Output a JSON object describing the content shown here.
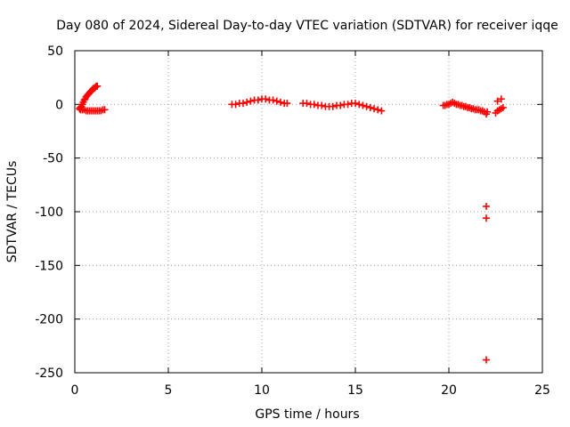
{
  "chart_data": {
    "type": "scatter",
    "title": "Day 080 of 2024, Sidereal Day-to-day VTEC variation (SDTVAR) for receiver iqqe",
    "xlabel": "GPS time / hours",
    "ylabel": "SDTVAR / TECUs",
    "xlim": [
      0,
      25
    ],
    "ylim": [
      -250,
      50
    ],
    "xticks": [
      0,
      5,
      10,
      15,
      20,
      25
    ],
    "yticks": [
      50,
      0,
      -50,
      -100,
      -150,
      -200,
      -250
    ],
    "grid": true,
    "color": "#ff0000",
    "marker": "plus",
    "series": [
      {
        "x": [
          0.25,
          0.3,
          0.35,
          0.4,
          0.45,
          0.5,
          0.55,
          0.6,
          0.65,
          0.7,
          0.75,
          0.8,
          0.85,
          0.9,
          0.95,
          1.0,
          1.05,
          1.1,
          1.15,
          1.2,
          0.3,
          0.4,
          0.5,
          0.6,
          0.7,
          0.8,
          0.9,
          1.0,
          1.1,
          1.2,
          1.3,
          1.4,
          1.5,
          1.6,
          8.4,
          8.6,
          8.8,
          9.0,
          9.2,
          9.4,
          9.6,
          9.8,
          10.0,
          10.2,
          10.4,
          10.6,
          10.8,
          11.0,
          11.2,
          11.35,
          12.2,
          12.4,
          12.6,
          12.8,
          13.0,
          13.2,
          13.4,
          13.6,
          13.8,
          14.0,
          14.2,
          14.4,
          14.6,
          14.8,
          15.0,
          15.2,
          15.4,
          15.6,
          15.8,
          16.0,
          16.2,
          16.4,
          19.7,
          19.8,
          19.9,
          20.0,
          20.1,
          20.2,
          20.3,
          20.4,
          20.5,
          20.6,
          20.7,
          20.8,
          20.9,
          21.0,
          21.1,
          21.2,
          21.3,
          21.4,
          21.5,
          21.6,
          21.7,
          21.8,
          21.9,
          22.0,
          22.0,
          22.0,
          22.0,
          22.05,
          22.5,
          22.6,
          22.7,
          22.8,
          22.9,
          22.6,
          22.8
        ],
        "y": [
          -4,
          -3,
          -2,
          0,
          2,
          4,
          5,
          7,
          8,
          9,
          10,
          11,
          12,
          13,
          14,
          15,
          15,
          16,
          17,
          17,
          -5,
          -5,
          -5,
          -6,
          -6,
          -6,
          -6,
          -6,
          -6,
          -6,
          -6,
          -6,
          -5,
          -5,
          0,
          0,
          1,
          1,
          2,
          3,
          4,
          4,
          5,
          5,
          4,
          4,
          3,
          2,
          1,
          1,
          1,
          1,
          0,
          0,
          -1,
          -1,
          -2,
          -2,
          -2,
          -1,
          -1,
          0,
          0,
          1,
          1,
          0,
          -1,
          -2,
          -3,
          -4,
          -5,
          -6,
          -1,
          -1,
          0,
          0,
          1,
          2,
          1,
          0,
          0,
          -1,
          -1,
          -2,
          -2,
          -3,
          -3,
          -4,
          -4,
          -5,
          -5,
          -5,
          -6,
          -6,
          -7,
          -9,
          -95,
          -106,
          -238,
          -7,
          -8,
          -6,
          -5,
          -4,
          -3,
          3,
          5
        ]
      }
    ]
  }
}
